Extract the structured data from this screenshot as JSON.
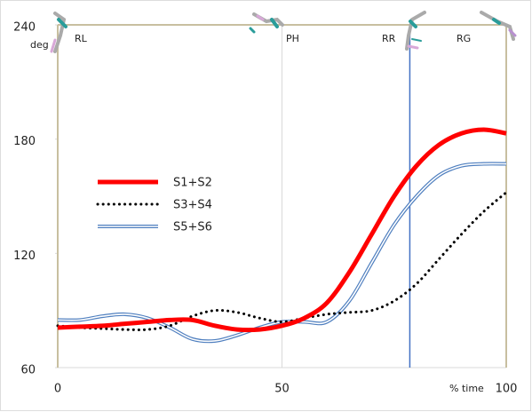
{
  "chart_data": {
    "type": "line",
    "x": [
      0,
      5,
      10,
      15,
      20,
      25,
      30,
      35,
      40,
      45,
      50,
      55,
      60,
      65,
      70,
      75,
      80,
      85,
      90,
      95,
      100
    ],
    "series": [
      {
        "name": "S1+S2",
        "color": "#ff0000",
        "style": "thick",
        "values": [
          81,
          81.5,
          82,
          83,
          84,
          85,
          85,
          82,
          80,
          80,
          82,
          86,
          94,
          110,
          130,
          150,
          166,
          177,
          183,
          185,
          183
        ]
      },
      {
        "name": "S3+S4",
        "color": "#000000",
        "style": "dotted",
        "values": [
          82,
          81,
          80.5,
          80,
          80,
          82,
          87,
          90,
          89,
          86,
          84,
          86,
          88,
          89,
          90,
          95,
          104,
          117,
          130,
          142,
          152
        ]
      },
      {
        "name": "S5+S6",
        "color": "#4f7fbf",
        "style": "double",
        "values": [
          85,
          85,
          87,
          88,
          86,
          81,
          75,
          74,
          77,
          81,
          84,
          84,
          84,
          95,
          115,
          135,
          150,
          161,
          166,
          167,
          167
        ]
      }
    ],
    "xlim": [
      0,
      100
    ],
    "xticks": [
      0,
      50,
      100
    ],
    "ylim": [
      60,
      240
    ],
    "yticks": [
      60,
      120,
      180,
      240
    ],
    "xlabel": "% time",
    "ylabel": "deg",
    "phases": [
      "RL",
      "PH",
      "RR",
      "RG"
    ],
    "vline": 78.5
  }
}
